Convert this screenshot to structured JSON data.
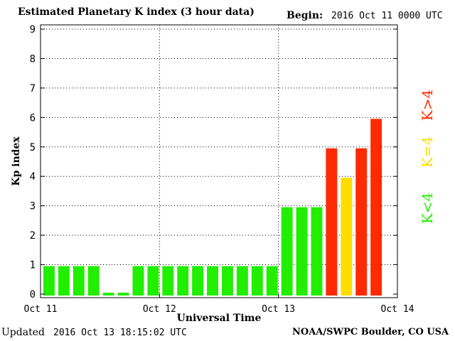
{
  "header": {
    "title": "Estimated Planetary K index (3 hour data)",
    "begin_label": "Begin:",
    "begin_value": "2016 Oct 11 0000 UTC"
  },
  "footer": {
    "updated_label": "Updated",
    "updated_value": "2016 Oct 13 18:15:02 UTC",
    "source": "NOAA/SWPC Boulder, CO USA"
  },
  "legend": [
    {
      "label": "K>4",
      "color": "#ff2a00"
    },
    {
      "label": "K=4",
      "color": "#ffdd00"
    },
    {
      "label": "K<4",
      "color": "#22ee00"
    }
  ],
  "chart_data": {
    "type": "bar",
    "title": "Estimated Planetary K index (3 hour data)",
    "xlabel": "Universal Time",
    "ylabel": "Kp index",
    "ylim": [
      0,
      9
    ],
    "yticks": [
      "0",
      "1",
      "2",
      "3",
      "4",
      "5",
      "6",
      "7",
      "8",
      "9"
    ],
    "xticks": [
      "Oct 11",
      "Oct 12",
      "Oct 13",
      "Oct 14"
    ],
    "xlim_days": [
      0,
      3
    ],
    "bins_per_day": 8,
    "grid": true,
    "values": [
      1,
      1,
      1,
      1,
      0,
      0,
      1,
      1,
      1,
      1,
      1,
      1,
      1,
      1,
      1,
      1,
      3,
      3,
      3,
      5,
      4,
      5,
      6
    ],
    "colors": {
      "below4": "#22ee00",
      "equal4": "#ffdd00",
      "above4": "#ff2a00"
    }
  }
}
